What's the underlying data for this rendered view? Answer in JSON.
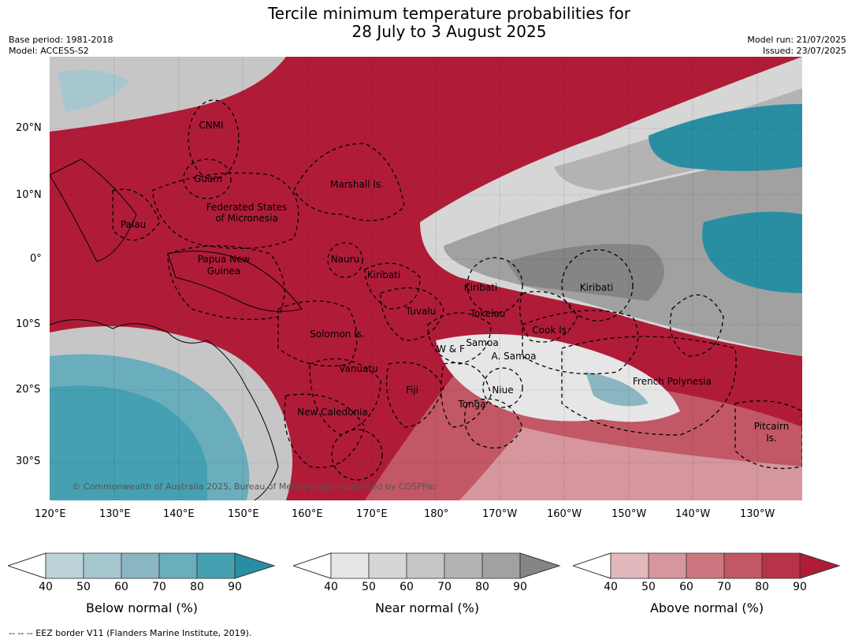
{
  "title_line1": "Tercile minimum temperature probabilities for",
  "title_line2": "28 July to 3 August 2025",
  "base_period": "Base period: 1981-2018",
  "model": "Model: ACCESS-S2",
  "model_run": "Model run: 21/07/2025",
  "issued": "Issued: 23/07/2025",
  "lat_ticks": [
    "20°N",
    "10°N",
    "0°",
    "10°S",
    "20°S",
    "30°S"
  ],
  "lon_ticks": [
    "120°E",
    "130°E",
    "140°E",
    "150°E",
    "160°E",
    "170°E",
    "180°",
    "170°W",
    "160°W",
    "150°W",
    "140°W",
    "130°W"
  ],
  "regions": [
    "CNMI",
    "Guam",
    "Marshall Is.",
    "Federated States",
    "of Micronesia",
    "Palau",
    "Papua New",
    "Guinea",
    "Nauru",
    "Kiribati",
    "Kiribati",
    "Kiribati",
    "Tuvalu",
    "Tokelau",
    "Solomon Is.",
    "W & F",
    "Samoa",
    "A. Samoa",
    "Cook Is.",
    "Vanuatu",
    "Fiji",
    "Niue",
    "Tonga",
    "French Polynesia",
    "New Caledonia",
    "Pitcairn",
    "Is."
  ],
  "copyright": "© Commonwealth of Australia 2025, Bureau of Meteorology, supported by COSPPac",
  "colorbars": [
    {
      "label": "Below normal (%)",
      "ticks": [
        "40",
        "50",
        "60",
        "70",
        "80",
        "90"
      ],
      "colors": [
        "#bdd3da",
        "#a6c7cd",
        "#8ab6c2",
        "#6aadbc",
        "#45a0b1",
        "#2a8ea3"
      ]
    },
    {
      "label": "Near normal (%)",
      "ticks": [
        "40",
        "50",
        "60",
        "70",
        "80",
        "90"
      ],
      "colors": [
        "#e6e6e6",
        "#d6d6d6",
        "#c6c6c6",
        "#b3b3b3",
        "#a1a1a1",
        "#858585"
      ]
    },
    {
      "label": "Above normal (%)",
      "ticks": [
        "40",
        "50",
        "60",
        "70",
        "80",
        "90"
      ],
      "colors": [
        "#e2b8bd",
        "#d5969d",
        "#cc7780",
        "#c25865",
        "#b7334a",
        "#b01c38"
      ]
    }
  ],
  "footer": "--  --  -- EEZ border V11 (Flanders Marine Institute, 2019).",
  "colors": {
    "below": "#2a8ea3",
    "near": "#858585",
    "above": "#b01c38"
  }
}
